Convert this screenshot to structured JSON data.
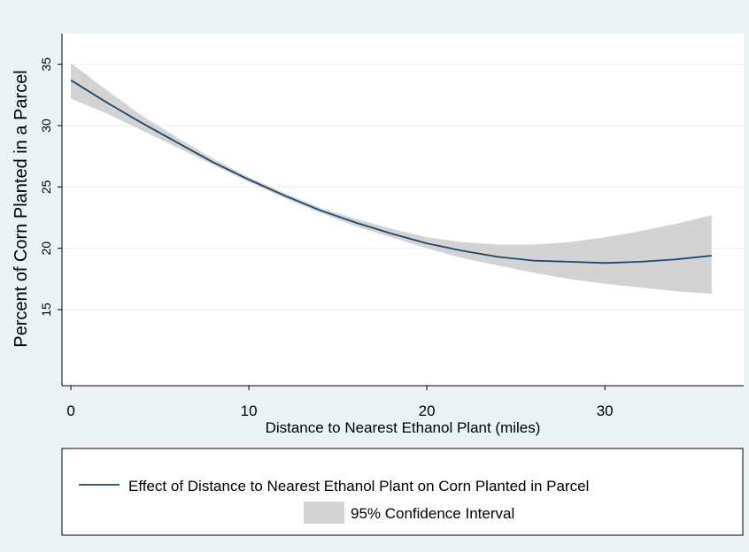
{
  "chart_data": {
    "type": "line",
    "title": "",
    "xlabel": "Distance to Nearest Ethanol Plant (miles)",
    "ylabel": "Percent of Corn Planted in a Parcel",
    "xlim": [
      -0.5,
      37.8
    ],
    "ylim": [
      8.8,
      37.5
    ],
    "x_ticks": [
      0,
      10,
      20,
      30
    ],
    "y_ticks": [
      15,
      20,
      25,
      30,
      35
    ],
    "grid": "horizontal",
    "legend_position": "bottom",
    "series": [
      {
        "name": "Effect of Distance to Nearest Ethanol Plant on Corn Planted in Parcel",
        "color": "#1a476f",
        "x": [
          0,
          2,
          4,
          6,
          8,
          10,
          12,
          14,
          16,
          18,
          20,
          22,
          24,
          26,
          28,
          30,
          32,
          34,
          36
        ],
        "y": [
          33.7,
          31.9,
          30.2,
          28.6,
          27.0,
          25.6,
          24.3,
          23.1,
          22.1,
          21.2,
          20.4,
          19.8,
          19.3,
          19.0,
          18.9,
          18.8,
          18.9,
          19.1,
          19.4
        ]
      }
    ],
    "confidence_band": {
      "name": "95% Confidence Interval",
      "color": "#d3d3d3",
      "x": [
        0,
        2,
        4,
        6,
        8,
        10,
        12,
        14,
        16,
        18,
        20,
        22,
        24,
        26,
        28,
        30,
        32,
        34,
        36
      ],
      "lower": [
        32.2,
        31.0,
        29.6,
        28.2,
        26.8,
        25.4,
        24.1,
        22.9,
        21.8,
        20.9,
        20.0,
        19.2,
        18.6,
        18.0,
        17.5,
        17.1,
        16.8,
        16.5,
        16.3
      ],
      "upper": [
        35.1,
        32.9,
        30.8,
        29.0,
        27.3,
        25.8,
        24.5,
        23.3,
        22.4,
        21.6,
        20.9,
        20.5,
        20.3,
        20.3,
        20.5,
        20.9,
        21.4,
        22.0,
        22.7
      ]
    }
  }
}
